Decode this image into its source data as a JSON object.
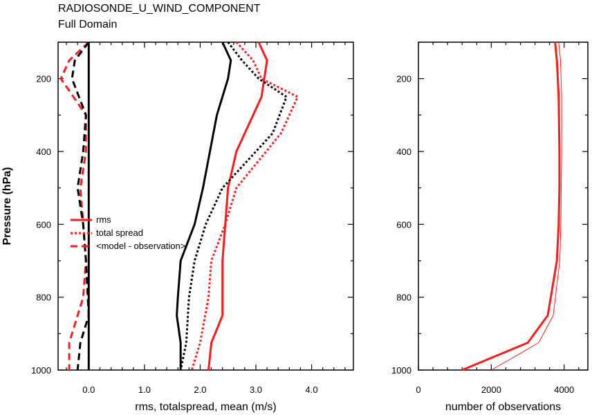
{
  "chart_data": {
    "title": "RADIOSONDE_U_WIND_COMPONENT",
    "subtitle": "Full Domain",
    "ylabel": "Pressure (hPa)",
    "ylim": [
      1000,
      100
    ],
    "yticks": [
      200,
      400,
      600,
      800,
      1000
    ],
    "ytick_labels": [
      "200",
      "400",
      "600",
      "800",
      "1000"
    ],
    "colors": {
      "red": "#ff1a1a",
      "black": "#000000"
    },
    "panels": [
      {
        "type": "line",
        "xlabel": "rms, totalspread, mean (m/s)",
        "xlim": [
          -0.55,
          4.75
        ],
        "xticks": [
          0.0,
          1.0,
          2.0,
          3.0,
          4.0
        ],
        "xtick_labels": [
          "0.0",
          "1.0",
          "2.0",
          "3.0",
          "4.0"
        ],
        "zero_line": 0.0,
        "legend": {
          "position": "center-left",
          "entries": [
            {
              "label": "rms",
              "style": "solid"
            },
            {
              "label": "total spread",
              "style": "dotted"
            },
            {
              "label": "<model - observation>",
              "style": "dashed"
            }
          ]
        },
        "series": [
          {
            "color": "red",
            "style": "solid",
            "width": 3,
            "x": [
              3.05,
              3.2,
              3.1,
              2.65,
              2.5,
              2.45,
              2.4,
              2.4,
              2.4,
              2.2,
              2.15
            ],
            "y": [
              100,
              150,
              250,
              400,
              500,
              600,
              700,
              800,
              850,
              925,
              1000
            ]
          },
          {
            "color": "black",
            "style": "solid",
            "width": 3,
            "x": [
              2.4,
              2.55,
              2.5,
              2.3,
              2.05,
              1.9,
              1.65,
              1.6,
              1.58,
              1.65,
              1.65
            ],
            "y": [
              100,
              150,
              200,
              300,
              500,
              600,
              700,
              800,
              850,
              925,
              1000
            ]
          },
          {
            "color": "red",
            "style": "dotted",
            "width": 3,
            "x": [
              2.65,
              2.95,
              3.1,
              3.75,
              3.45,
              2.65,
              2.45,
              2.2,
              2.15,
              2.0,
              1.85
            ],
            "y": [
              100,
              150,
              200,
              250,
              350,
              500,
              600,
              700,
              800,
              925,
              1000
            ]
          },
          {
            "color": "black",
            "style": "dotted",
            "width": 3,
            "x": [
              2.5,
              2.75,
              3.05,
              3.55,
              3.3,
              2.4,
              2.1,
              1.9,
              1.8,
              1.75,
              1.65
            ],
            "y": [
              100,
              150,
              200,
              250,
              350,
              500,
              600,
              700,
              800,
              925,
              1000
            ]
          },
          {
            "color": "red",
            "style": "dashed",
            "width": 3,
            "x": [
              0.0,
              -0.35,
              -0.5,
              -0.05,
              -0.05,
              -0.15,
              -0.1,
              -0.05,
              -0.1,
              -0.35,
              -0.35
            ],
            "y": [
              100,
              150,
              200,
              300,
              400,
              500,
              600,
              700,
              800,
              925,
              1000
            ]
          },
          {
            "color": "black",
            "style": "dashed",
            "width": 3,
            "x": [
              0.0,
              -0.25,
              -0.3,
              -0.05,
              -0.1,
              -0.2,
              -0.1,
              -0.05,
              0.0,
              -0.15,
              -0.2
            ],
            "y": [
              100,
              150,
              200,
              300,
              400,
              500,
              600,
              700,
              850,
              925,
              1000
            ]
          }
        ]
      },
      {
        "type": "line",
        "xlabel": "number of observations",
        "xlim": [
          0,
          4650
        ],
        "xticks": [
          0,
          2000,
          4000
        ],
        "xtick_labels": [
          "0",
          "2000",
          "4000"
        ],
        "series": [
          {
            "color": "red",
            "style": "solid",
            "width": 3,
            "x": [
              3750,
              3800,
              3850,
              3870,
              3870,
              3850,
              3800,
              3550,
              3000,
              1200
            ],
            "y": [
              100,
              150,
              250,
              400,
              500,
              600,
              700,
              850,
              925,
              1000
            ]
          },
          {
            "color": "red",
            "style": "solid",
            "width": 1,
            "x": [
              3850,
              3900,
              3930,
              3930,
              3920,
              3910,
              3880,
              3700,
              3300,
              2000
            ],
            "y": [
              100,
              150,
              250,
              400,
              500,
              600,
              700,
              850,
              925,
              1000
            ]
          }
        ]
      }
    ]
  }
}
